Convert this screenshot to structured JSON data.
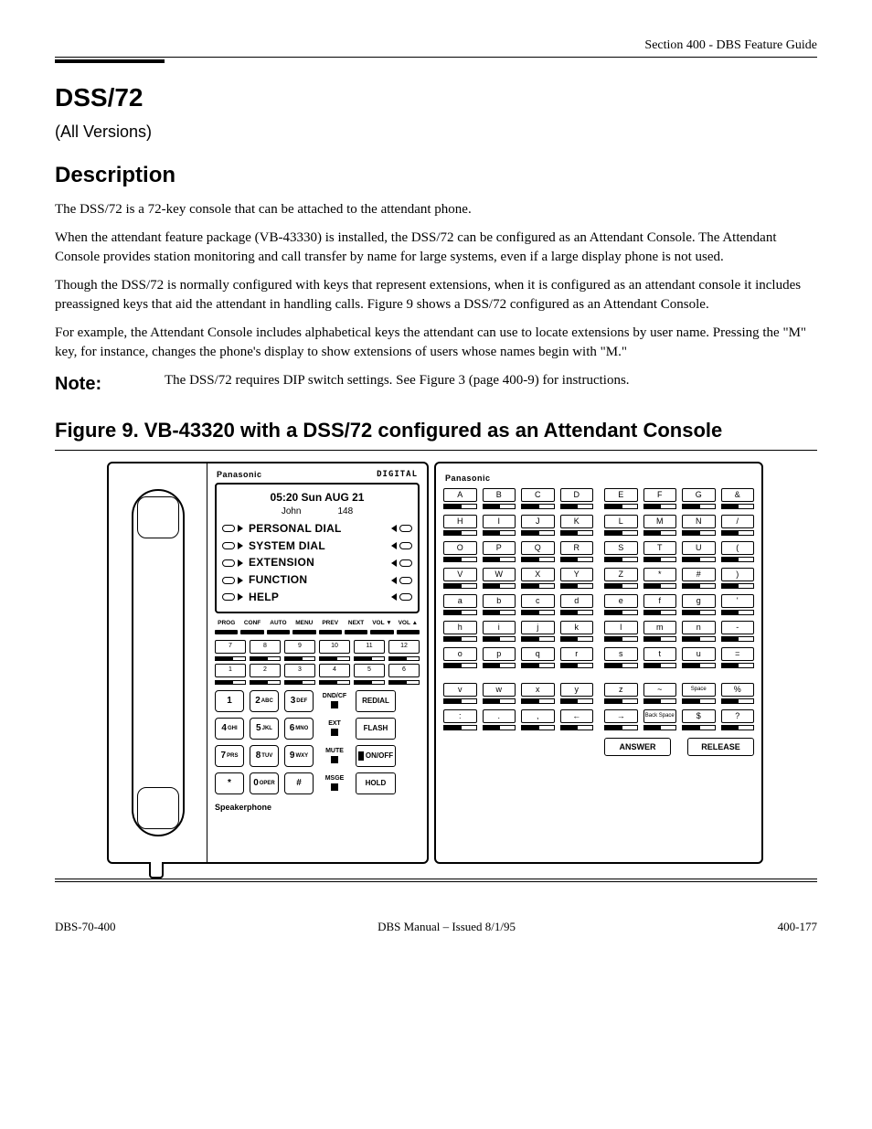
{
  "page": {
    "header_section": "Section 400 - DBS Feature Guide",
    "footer_left": "DBS-70-400",
    "footer_center": "DBS Manual – Issued 8/1/95",
    "footer_right": "400-177"
  },
  "headings": {
    "h1": "DSS/72",
    "sub": "(All Versions)",
    "desc_title": "Description",
    "fig_title": "Figure 9. VB-43320 with a DSS/72 configured as an Attendant Console",
    "note_label": "Note:"
  },
  "paragraphs": {
    "p1": "The DSS/72 is a 72-key console that can be attached to the attendant phone.",
    "p2": "When the attendant feature package (VB-43330) is installed, the DSS/72 can be configured as an Attendant Console. The Attendant Console provides station monitoring and call transfer by name for large systems, even if a large display phone is not used.",
    "p3": "Though the DSS/72 is normally configured with keys that represent extensions, when it is configured as an attendant console it includes preassigned keys that aid the attendant in handling calls. Figure 9 shows a DSS/72 configured as an Attendant Console.",
    "p4": "For example, the Attendant Console includes alphabetical keys the attendant can use to locate extensions by user name. Pressing the \"M\" key, for instance, changes the phone's display to show extensions of users whose names begin with \"M.\"",
    "note": "The DSS/72 requires DIP switch settings. See Figure 3 (page 400-9) for instructions."
  },
  "phone": {
    "brand": "Panasonic",
    "digital": "DIGITAL",
    "lcd_time": "05:20 Sun AUG 21",
    "lcd_name": "John",
    "lcd_ext": "148",
    "menu": [
      "PERSONAL DIAL",
      "SYSTEM DIAL",
      "EXTENSION",
      "FUNCTION",
      "HELP"
    ],
    "fn_labels": [
      "PROG",
      "CONF",
      "AUTO",
      "MENU",
      "PREV",
      "NEXT",
      "VOL ▼",
      "VOL ▲"
    ],
    "ff_row1": [
      "7",
      "8",
      "9",
      "10",
      "11",
      "12"
    ],
    "ff_row2": [
      "1",
      "2",
      "3",
      "4",
      "5",
      "6"
    ],
    "dial": [
      {
        "n": "1",
        "s": ""
      },
      {
        "n": "2",
        "s": "ABC"
      },
      {
        "n": "3",
        "s": "DEF"
      },
      {
        "n": "4",
        "s": "GHI"
      },
      {
        "n": "5",
        "s": "JKL"
      },
      {
        "n": "6",
        "s": "MNO"
      },
      {
        "n": "7",
        "s": "PRS"
      },
      {
        "n": "8",
        "s": "TUV"
      },
      {
        "n": "9",
        "s": "WXY"
      },
      {
        "n": "*",
        "s": ""
      },
      {
        "n": "0",
        "s": "OPER"
      },
      {
        "n": "#",
        "s": ""
      }
    ],
    "right_col": [
      {
        "lbl": "DND/CF",
        "btn": "REDIAL"
      },
      {
        "lbl": "EXT",
        "btn": "FLASH"
      },
      {
        "lbl": "MUTE",
        "btn": "ON/OFF"
      },
      {
        "lbl": "MSGE",
        "btn": "HOLD"
      }
    ],
    "speaker": "Speakerphone"
  },
  "dss": {
    "brand": "Panasonic",
    "left_rows": [
      [
        "A",
        "B",
        "C",
        "D"
      ],
      [
        "H",
        "I",
        "J",
        "K"
      ],
      [
        "O",
        "P",
        "Q",
        "R"
      ],
      [
        "V",
        "W",
        "X",
        "Y"
      ],
      [
        "a",
        "b",
        "c",
        "d"
      ],
      [
        "h",
        "i",
        "j",
        "k"
      ],
      [
        "o",
        "p",
        "q",
        "r"
      ]
    ],
    "right_rows": [
      [
        "E",
        "F",
        "G",
        "&"
      ],
      [
        "L",
        "M",
        "N",
        "/"
      ],
      [
        "S",
        "T",
        "U",
        "("
      ],
      [
        "Z",
        "*",
        "#",
        ")"
      ],
      [
        "e",
        "f",
        "g",
        "'"
      ],
      [
        "l",
        "m",
        "n",
        "-"
      ],
      [
        "s",
        "t",
        "u",
        "="
      ]
    ],
    "bottom_left": [
      [
        "v",
        "w",
        "x",
        "y"
      ],
      [
        ":",
        ".",
        ",",
        "←"
      ]
    ],
    "bottom_right": [
      [
        "z",
        "~",
        "Space",
        "%"
      ],
      [
        "→",
        "Back Space",
        "$",
        "?"
      ]
    ],
    "answer": "ANSWER",
    "release": "RELEASE"
  },
  "figure_caption_bold": "Figure 9.",
  "figure_caption_rest": "VB-43320 with a DSS/72 configured as an Attendant Console"
}
